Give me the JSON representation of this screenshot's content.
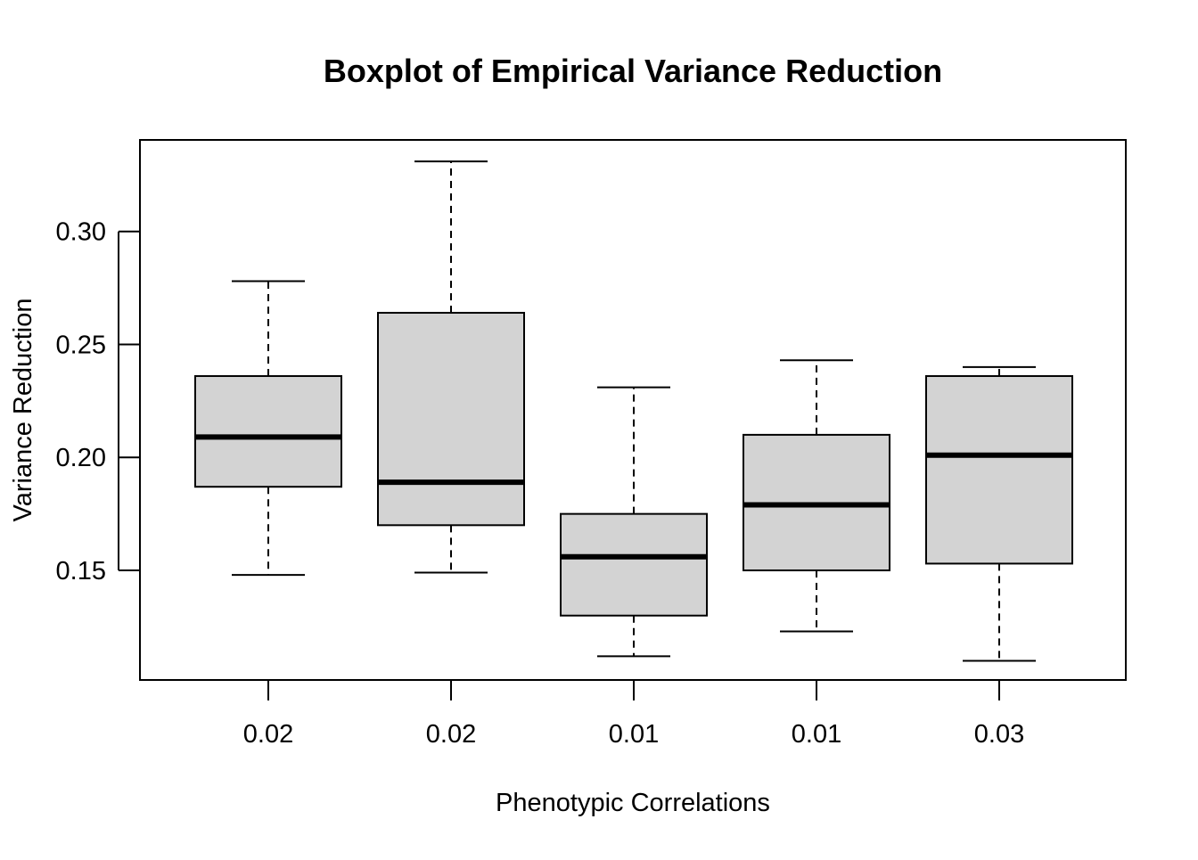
{
  "chart_data": {
    "type": "boxplot",
    "title": "Boxplot of Empirical Variance Reduction",
    "xlabel": "Phenotypic Correlations",
    "ylabel": "Variance Reduction",
    "categories": [
      "0.02",
      "0.02",
      "0.01",
      "0.01",
      "0.03"
    ],
    "boxes": [
      {
        "min": 0.148,
        "q1": 0.187,
        "median": 0.209,
        "q3": 0.236,
        "max": 0.278
      },
      {
        "min": 0.149,
        "q1": 0.17,
        "median": 0.189,
        "q3": 0.264,
        "max": 0.331
      },
      {
        "min": 0.112,
        "q1": 0.13,
        "median": 0.156,
        "q3": 0.175,
        "max": 0.231
      },
      {
        "min": 0.123,
        "q1": 0.15,
        "median": 0.179,
        "q3": 0.21,
        "max": 0.243
      },
      {
        "min": 0.11,
        "q1": 0.153,
        "median": 0.201,
        "q3": 0.236,
        "max": 0.24
      }
    ],
    "yticks": [
      "0.15",
      "0.20",
      "0.25",
      "0.30"
    ],
    "ylim": [
      0.1015,
      0.3405
    ],
    "grid": false,
    "colors": {
      "box_fill": "#d3d3d3",
      "stroke": "#000000",
      "background": "#ffffff"
    }
  }
}
